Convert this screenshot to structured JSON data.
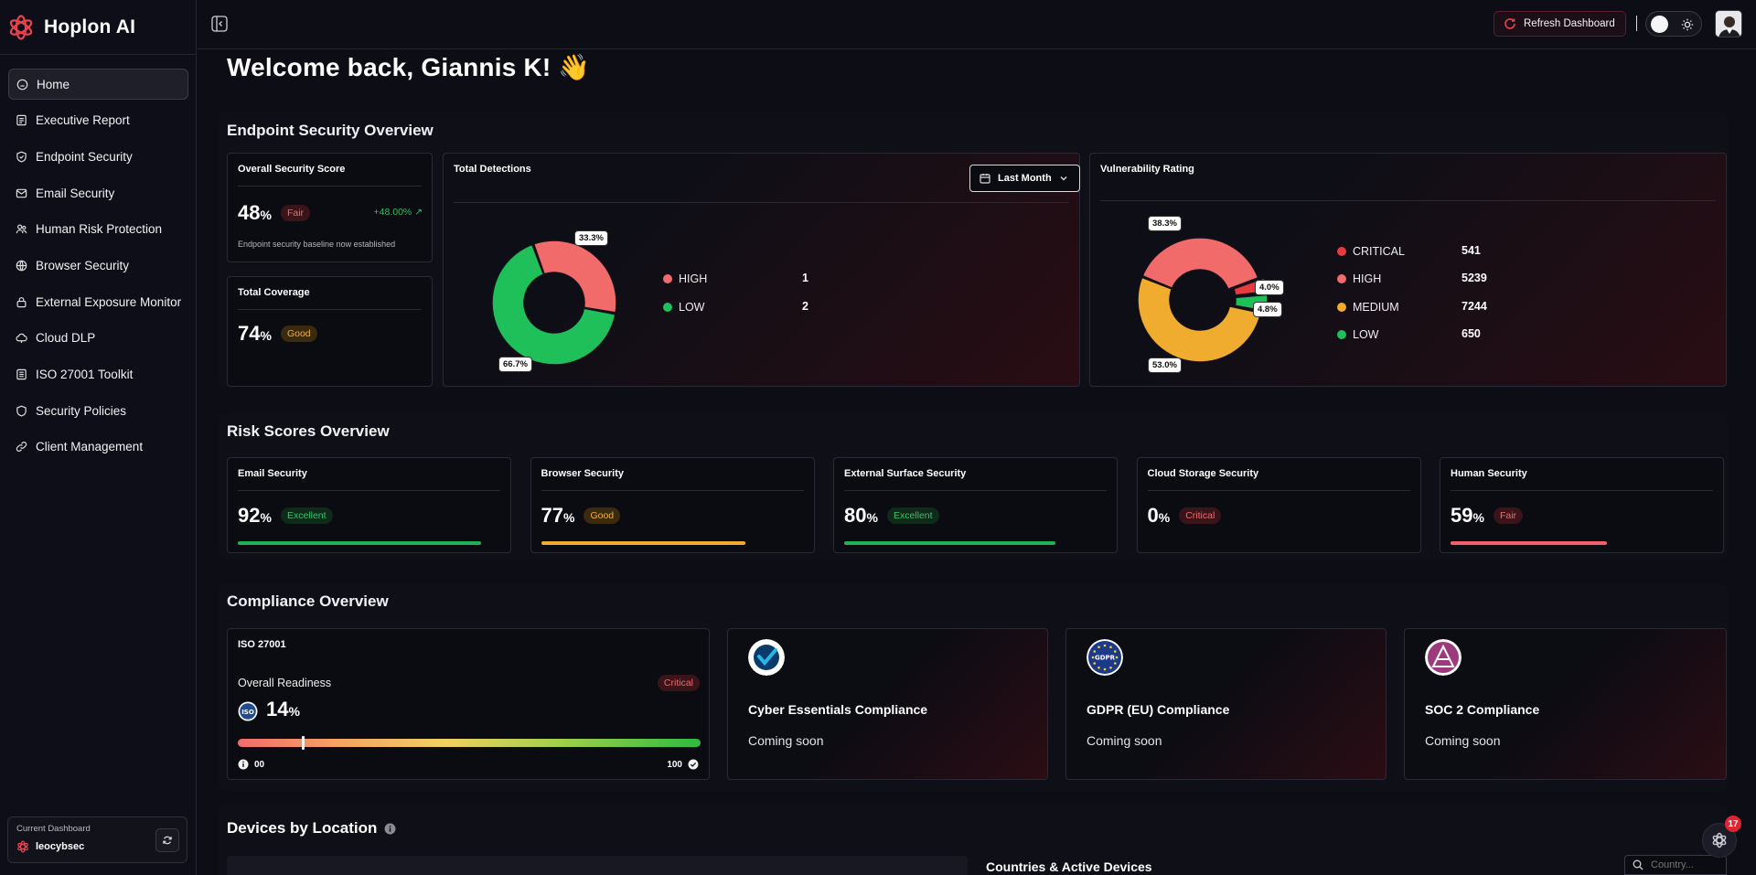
{
  "brand": {
    "name": "Hoplon AI"
  },
  "sidebar": {
    "items": [
      {
        "label": "Home",
        "icon": "home-icon",
        "active": true
      },
      {
        "label": "Executive Report",
        "icon": "report-icon"
      },
      {
        "label": "Endpoint Security",
        "icon": "shield-icon"
      },
      {
        "label": "Email Security",
        "icon": "mail-icon"
      },
      {
        "label": "Human Risk Protection",
        "icon": "users-icon"
      },
      {
        "label": "Browser Security",
        "icon": "globe-icon"
      },
      {
        "label": "External Exposure Monitor",
        "icon": "lock-icon"
      },
      {
        "label": "Cloud DLP",
        "icon": "cloud-icon"
      },
      {
        "label": "ISO 27001 Toolkit",
        "icon": "document-icon"
      },
      {
        "label": "Security Policies",
        "icon": "shield-icon"
      },
      {
        "label": "Client Management",
        "icon": "link-icon"
      }
    ],
    "current_dashboard": {
      "label": "Current Dashboard",
      "name": "leocybsec"
    }
  },
  "header": {
    "refresh_label": "Refresh Dashboard"
  },
  "welcome": "Welcome back, Giannis K! 👋",
  "endpoint": {
    "title": "Endpoint Security Overview",
    "overall_score": {
      "title": "Overall Security Score",
      "value": "48",
      "unit": "%",
      "badge": "Fair",
      "change": "+48.00%",
      "note": "Endpoint security baseline now established"
    },
    "coverage": {
      "title": "Total Coverage",
      "value": "74",
      "unit": "%",
      "badge": "Good"
    },
    "detections": {
      "title": "Total Detections",
      "period": "Last Month",
      "pct_high": "33.3%",
      "pct_low": "66.7%",
      "legend": [
        {
          "label": "HIGH",
          "value": "1",
          "color": "#f26b6b"
        },
        {
          "label": "LOW",
          "value": "2",
          "color": "#1fbf5a"
        }
      ]
    },
    "vulnerability": {
      "title": "Vulnerability Rating",
      "pct_critical": "4.0%",
      "pct_high": "38.3%",
      "pct_medium": "53.0%",
      "pct_low": "4.8%",
      "legend": [
        {
          "label": "CRITICAL",
          "value": "541",
          "color": "#e83a3f"
        },
        {
          "label": "HIGH",
          "value": "5239",
          "color": "#f26b6b"
        },
        {
          "label": "MEDIUM",
          "value": "7244",
          "color": "#f0ac2e"
        },
        {
          "label": "LOW",
          "value": "650",
          "color": "#1fbf5a"
        }
      ]
    }
  },
  "chart_data": [
    {
      "type": "pie",
      "title": "Total Detections",
      "categories": [
        "HIGH",
        "LOW"
      ],
      "values": [
        1,
        2
      ],
      "labels": [
        "33.3%",
        "66.7%"
      ]
    },
    {
      "type": "pie",
      "title": "Vulnerability Rating",
      "categories": [
        "CRITICAL",
        "HIGH",
        "MEDIUM",
        "LOW"
      ],
      "values": [
        541,
        5239,
        7244,
        650
      ],
      "labels": [
        "4.0%",
        "38.3%",
        "53.0%",
        "4.8%"
      ]
    }
  ],
  "risk": {
    "title": "Risk Scores Overview",
    "cards": [
      {
        "title": "Email Security",
        "value": "92",
        "unit": "%",
        "badge": "Excellent",
        "progress": 0.92,
        "color": "#1fb255"
      },
      {
        "title": "Browser Security",
        "value": "77",
        "unit": "%",
        "badge": "Good",
        "progress": 0.77,
        "color": "#f0ac2e"
      },
      {
        "title": "External Surface Security",
        "value": "80",
        "unit": "%",
        "badge": "Excellent",
        "progress": 0.8,
        "color": "#1fb255"
      },
      {
        "title": "Cloud Storage Security",
        "value": "0",
        "unit": "%",
        "badge": "Critical",
        "progress": 0,
        "color": "#f26b6b"
      },
      {
        "title": "Human Security",
        "value": "59",
        "unit": "%",
        "badge": "Fair",
        "progress": 0.59,
        "color": "#f25f6b"
      }
    ]
  },
  "compliance": {
    "title": "Compliance Overview",
    "iso": {
      "title": "ISO 27001",
      "subtitle": "Overall Readiness",
      "badge": "Critical",
      "value": "14",
      "unit": "%",
      "min": "00",
      "max": "100",
      "progress": 0.14
    },
    "cards": [
      {
        "title": "Cyber Essentials Compliance",
        "status": "Coming soon"
      },
      {
        "title": "GDPR (EU) Compliance",
        "status": "Coming soon"
      },
      {
        "title": "SOC 2 Compliance",
        "status": "Coming soon"
      }
    ],
    "gdpr_logo_text": "GDPR"
  },
  "devices": {
    "title": "Devices by Location",
    "countries_title": "Countries & Active Devices",
    "search_placeholder": "Country..."
  },
  "assistant": {
    "badge": "17"
  }
}
